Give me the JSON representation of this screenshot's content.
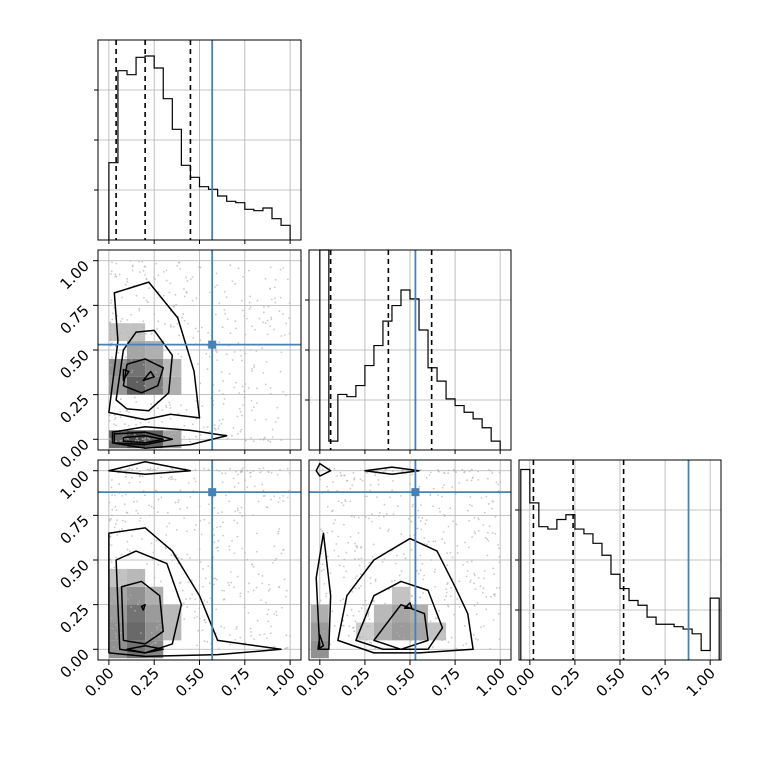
{
  "chart_data": {
    "type": "corner",
    "dimensions": 3,
    "range": [
      -0.06,
      1.06
    ],
    "tick_values": [
      0.0,
      0.25,
      0.5,
      0.75,
      1.0
    ],
    "tick_labels": [
      "0.00",
      "0.25",
      "0.50",
      "0.75",
      "1.00"
    ],
    "grid": true,
    "colors": {
      "truth": "#4682b4",
      "hist": "#000000",
      "quantile": "#000000",
      "scatter": "#b4b4b4"
    },
    "truths": [
      0.57,
      0.53,
      0.88
    ],
    "quantiles": [
      [
        0.04,
        0.2,
        0.45
      ],
      [
        0.06,
        0.38,
        0.62
      ],
      [
        0.02,
        0.24,
        0.52
      ]
    ],
    "histograms": [
      {
        "bin_edges": [
          0.0,
          0.05,
          0.1,
          0.15,
          0.2,
          0.25,
          0.3,
          0.35,
          0.4,
          0.45,
          0.5,
          0.55,
          0.6,
          0.65,
          0.7,
          0.75,
          0.8,
          0.85,
          0.9,
          0.95,
          1.0
        ],
        "values": [
          58,
          127,
          124,
          137,
          138,
          129,
          106,
          83,
          56,
          47,
          40,
          38,
          33,
          29,
          28,
          23,
          22,
          24,
          16,
          11
        ],
        "ylim": [
          0,
          150
        ]
      },
      {
        "bin_edges": [
          0.0,
          0.05,
          0.1,
          0.15,
          0.2,
          0.25,
          0.3,
          0.35,
          0.4,
          0.45,
          0.5,
          0.55,
          0.6,
          0.65,
          0.7,
          0.75,
          0.8,
          0.85,
          0.9,
          0.95,
          1.0
        ],
        "values": [
          0.9,
          0.04,
          0.25,
          0.24,
          0.29,
          0.38,
          0.47,
          0.58,
          0.65,
          0.72,
          0.68,
          0.54,
          0.37,
          0.31,
          0.23,
          0.2,
          0.17,
          0.14,
          0.1,
          0.04
        ],
        "ylim": [
          0,
          0.9
        ]
      },
      {
        "bin_edges": [
          -0.05,
          0.0,
          0.05,
          0.1,
          0.15,
          0.2,
          0.25,
          0.3,
          0.35,
          0.4,
          0.45,
          0.5,
          0.55,
          0.6,
          0.65,
          0.7,
          0.75,
          0.8,
          0.85,
          0.9,
          0.95,
          1.0,
          1.05
        ],
        "values": [
          0.8,
          0.66,
          0.56,
          0.55,
          0.59,
          0.61,
          0.55,
          0.53,
          0.49,
          0.44,
          0.36,
          0.3,
          0.25,
          0.23,
          0.18,
          0.15,
          0.15,
          0.14,
          0.13,
          0.11,
          0.04,
          0.26
        ],
        "ylim": [
          0,
          0.84
        ]
      }
    ],
    "pairs": [
      {
        "x_dim": 0,
        "y_dim": 1,
        "density_cells": [
          {
            "x": 0.05,
            "y": 0.0,
            "v": 0.75
          },
          {
            "x": 0.15,
            "y": 0.0,
            "v": 0.9
          },
          {
            "x": 0.25,
            "y": 0.0,
            "v": 0.8
          },
          {
            "x": 0.35,
            "y": 0.0,
            "v": 0.45
          },
          {
            "x": 0.05,
            "y": 0.4,
            "v": 0.55
          },
          {
            "x": 0.15,
            "y": 0.4,
            "v": 0.7
          },
          {
            "x": 0.25,
            "y": 0.4,
            "v": 0.6
          },
          {
            "x": 0.05,
            "y": 0.3,
            "v": 0.5
          },
          {
            "x": 0.15,
            "y": 0.3,
            "v": 0.8
          },
          {
            "x": 0.25,
            "y": 0.3,
            "v": 0.65
          },
          {
            "x": 0.35,
            "y": 0.3,
            "v": 0.4
          },
          {
            "x": 0.15,
            "y": 0.5,
            "v": 0.45
          },
          {
            "x": 0.25,
            "y": 0.5,
            "v": 0.4
          },
          {
            "x": 0.35,
            "y": 0.4,
            "v": 0.35
          },
          {
            "x": 0.05,
            "y": 0.6,
            "v": 0.3
          },
          {
            "x": 0.15,
            "y": 0.6,
            "v": 0.3
          }
        ],
        "contours": [
          [
            [
              0.02,
              -0.02
            ],
            [
              0.2,
              -0.05
            ],
            [
              0.45,
              -0.03
            ],
            [
              0.65,
              0.02
            ],
            [
              0.45,
              0.05
            ],
            [
              0.2,
              0.07
            ],
            [
              0.02,
              0.04
            ]
          ],
          [
            [
              0.03,
              -0.02
            ],
            [
              0.2,
              -0.03
            ],
            [
              0.35,
              0.0
            ],
            [
              0.2,
              0.04
            ],
            [
              0.03,
              0.03
            ]
          ],
          [
            [
              0.08,
              -0.01
            ],
            [
              0.2,
              -0.02
            ],
            [
              0.3,
              0.0
            ],
            [
              0.2,
              0.02
            ],
            [
              0.08,
              0.01
            ]
          ],
          [
            [
              0.0,
              0.15
            ],
            [
              0.05,
              0.55
            ],
            [
              0.03,
              0.82
            ],
            [
              0.22,
              0.88
            ],
            [
              0.38,
              0.68
            ],
            [
              0.47,
              0.38
            ],
            [
              0.5,
              0.12
            ],
            [
              0.34,
              0.14
            ],
            [
              0.2,
              0.11
            ]
          ],
          [
            [
              0.04,
              0.22
            ],
            [
              0.08,
              0.5
            ],
            [
              0.15,
              0.6
            ],
            [
              0.25,
              0.61
            ],
            [
              0.35,
              0.47
            ],
            [
              0.33,
              0.26
            ],
            [
              0.22,
              0.16
            ],
            [
              0.1,
              0.17
            ]
          ],
          [
            [
              0.08,
              0.3
            ],
            [
              0.1,
              0.42
            ],
            [
              0.2,
              0.45
            ],
            [
              0.3,
              0.4
            ],
            [
              0.27,
              0.3
            ],
            [
              0.18,
              0.26
            ]
          ],
          [
            [
              0.08,
              0.33
            ],
            [
              0.11,
              0.38
            ],
            [
              0.08,
              0.39
            ]
          ],
          [
            [
              0.19,
              0.33
            ],
            [
              0.23,
              0.38
            ],
            [
              0.25,
              0.35
            ]
          ]
        ]
      },
      {
        "x_dim": 0,
        "y_dim": 2,
        "density_cells": [
          {
            "x": 0.05,
            "y": 0.0,
            "v": 0.55
          },
          {
            "x": 0.15,
            "y": 0.0,
            "v": 0.7
          },
          {
            "x": 0.25,
            "y": 0.0,
            "v": 0.6
          },
          {
            "x": 0.05,
            "y": 0.1,
            "v": 0.55
          },
          {
            "x": 0.15,
            "y": 0.1,
            "v": 0.75
          },
          {
            "x": 0.25,
            "y": 0.1,
            "v": 0.55
          },
          {
            "x": 0.05,
            "y": 0.2,
            "v": 0.5
          },
          {
            "x": 0.15,
            "y": 0.2,
            "v": 0.7
          },
          {
            "x": 0.25,
            "y": 0.2,
            "v": 0.5
          },
          {
            "x": 0.05,
            "y": 0.3,
            "v": 0.45
          },
          {
            "x": 0.15,
            "y": 0.3,
            "v": 0.55
          },
          {
            "x": 0.25,
            "y": 0.3,
            "v": 0.4
          },
          {
            "x": 0.35,
            "y": 0.2,
            "v": 0.35
          },
          {
            "x": 0.15,
            "y": 0.4,
            "v": 0.35
          },
          {
            "x": 0.05,
            "y": 0.4,
            "v": 0.3
          },
          {
            "x": 0.35,
            "y": 0.1,
            "v": 0.35
          }
        ],
        "contours": [
          [
            [
              0.0,
              1.0
            ],
            [
              0.2,
              1.05
            ],
            [
              0.45,
              1.0
            ],
            [
              0.2,
              0.98
            ]
          ],
          [
            [
              0.0,
              0.65
            ],
            [
              0.2,
              0.68
            ],
            [
              0.35,
              0.55
            ],
            [
              0.5,
              0.3
            ],
            [
              0.6,
              0.05
            ],
            [
              0.95,
              0.0
            ],
            [
              0.6,
              -0.03
            ],
            [
              0.2,
              -0.04
            ],
            [
              0.0,
              -0.02
            ]
          ],
          [
            [
              0.04,
              0.5
            ],
            [
              0.15,
              0.55
            ],
            [
              0.32,
              0.48
            ],
            [
              0.4,
              0.25
            ],
            [
              0.35,
              0.03
            ],
            [
              0.2,
              -0.02
            ],
            [
              0.06,
              0.0
            ]
          ],
          [
            [
              0.07,
              0.35
            ],
            [
              0.18,
              0.38
            ],
            [
              0.28,
              0.3
            ],
            [
              0.3,
              0.1
            ],
            [
              0.2,
              0.03
            ],
            [
              0.08,
              0.05
            ]
          ],
          [
            [
              0.1,
              0.0
            ],
            [
              0.2,
              0.02
            ],
            [
              0.3,
              0.0
            ],
            [
              0.2,
              -0.02
            ]
          ],
          [
            [
              0.18,
              0.24
            ],
            [
              0.2,
              0.25
            ],
            [
              0.19,
              0.22
            ]
          ]
        ]
      },
      {
        "x_dim": 1,
        "y_dim": 2,
        "density_cells": [
          {
            "x": 0.0,
            "y": 0.0,
            "v": 0.55
          },
          {
            "x": 0.0,
            "y": 0.1,
            "v": 0.5
          },
          {
            "x": 0.0,
            "y": 0.2,
            "v": 0.4
          },
          {
            "x": 0.35,
            "y": 0.1,
            "v": 0.4
          },
          {
            "x": 0.45,
            "y": 0.1,
            "v": 0.5
          },
          {
            "x": 0.45,
            "y": 0.2,
            "v": 0.45
          },
          {
            "x": 0.55,
            "y": 0.1,
            "v": 0.45
          },
          {
            "x": 0.55,
            "y": 0.2,
            "v": 0.4
          },
          {
            "x": 0.35,
            "y": 0.2,
            "v": 0.35
          },
          {
            "x": 0.65,
            "y": 0.1,
            "v": 0.3
          },
          {
            "x": 0.45,
            "y": 0.3,
            "v": 0.3
          },
          {
            "x": 0.25,
            "y": 0.1,
            "v": 0.25
          }
        ],
        "contours": [
          [
            [
              -0.02,
              1.0
            ],
            [
              0.0,
              1.04
            ],
            [
              0.06,
              1.0
            ],
            [
              0.0,
              0.97
            ]
          ],
          [
            [
              0.25,
              1.0
            ],
            [
              0.4,
              1.02
            ],
            [
              0.55,
              1.0
            ],
            [
              0.4,
              0.98
            ]
          ],
          [
            [
              0.0,
              0.0
            ],
            [
              -0.02,
              0.4
            ],
            [
              0.02,
              0.65
            ],
            [
              0.06,
              0.3
            ],
            [
              0.05,
              0.0
            ]
          ],
          [
            [
              0.1,
              0.05
            ],
            [
              0.15,
              0.3
            ],
            [
              0.3,
              0.5
            ],
            [
              0.5,
              0.62
            ],
            [
              0.65,
              0.55
            ],
            [
              0.75,
              0.35
            ],
            [
              0.82,
              0.2
            ],
            [
              0.85,
              0.0
            ],
            [
              0.55,
              -0.02
            ],
            [
              0.3,
              -0.02
            ]
          ],
          [
            [
              0.2,
              0.05
            ],
            [
              0.3,
              0.3
            ],
            [
              0.45,
              0.38
            ],
            [
              0.6,
              0.33
            ],
            [
              0.68,
              0.12
            ],
            [
              0.6,
              0.0
            ],
            [
              0.35,
              0.0
            ]
          ],
          [
            [
              0.3,
              0.05
            ],
            [
              0.45,
              0.25
            ],
            [
              0.58,
              0.2
            ],
            [
              0.6,
              0.05
            ],
            [
              0.45,
              0.0
            ]
          ],
          [
            [
              -0.01,
              0.0
            ],
            [
              0.0,
              0.08
            ],
            [
              0.02,
              0.02
            ]
          ],
          [
            [
              0.47,
              0.23
            ],
            [
              0.5,
              0.26
            ],
            [
              0.51,
              0.23
            ]
          ]
        ]
      }
    ]
  }
}
